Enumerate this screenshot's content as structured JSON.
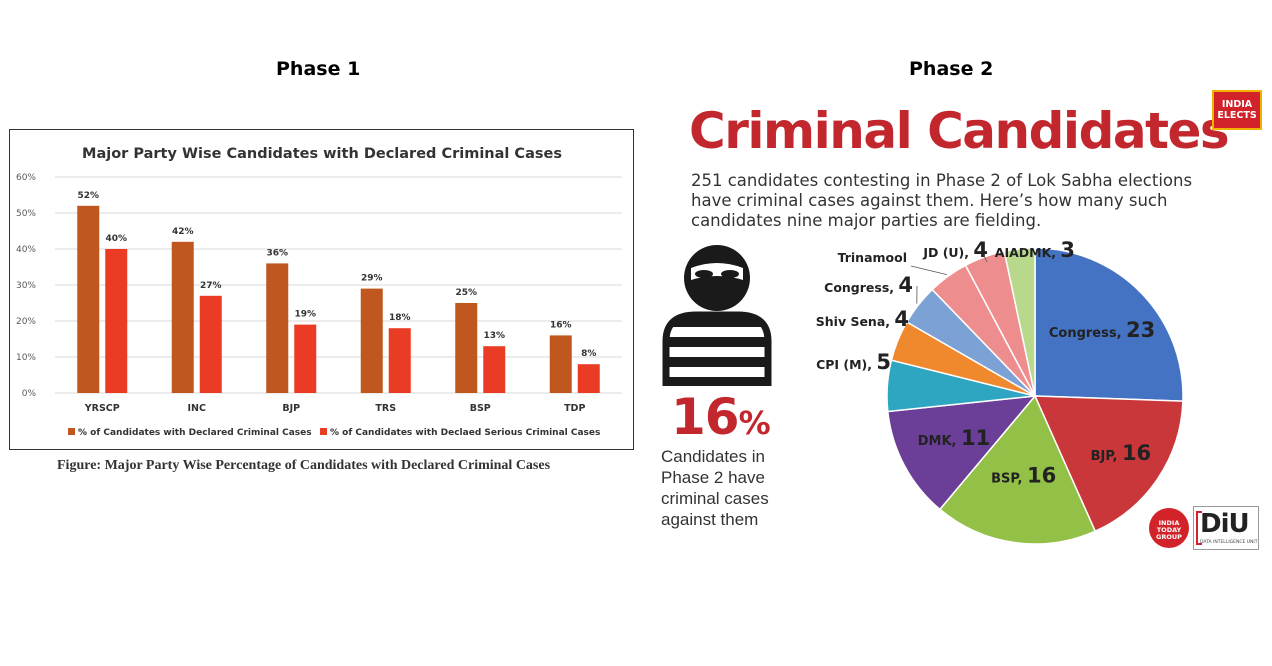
{
  "headers": {
    "phase1": "Phase 1",
    "phase2": "Phase 2"
  },
  "chart_data": [
    {
      "type": "bar",
      "title": "Major Party Wise Candidates with Declared Criminal Cases",
      "categories": [
        "YRSCP",
        "INC",
        "BJP",
        "TRS",
        "BSP",
        "TDP"
      ],
      "series": [
        {
          "name": "% of Candidates with Declared Criminal Cases",
          "values": [
            52,
            42,
            36,
            29,
            25,
            16
          ],
          "color": "#c0571f"
        },
        {
          "name": "% of Candidates with Declaed Serious Criminal Cases",
          "values": [
            40,
            27,
            19,
            18,
            13,
            8
          ],
          "color": "#ea3b25"
        }
      ],
      "value_suffix": "%",
      "ylim": [
        0,
        60
      ],
      "yticks": [
        "0%",
        "10%",
        "20%",
        "30%",
        "40%",
        "50%",
        "60%"
      ],
      "grid": true,
      "legend_position": "bottom",
      "caption": "Figure: Major Party Wise Percentage of Candidates with Declared Criminal Cases"
    },
    {
      "type": "pie",
      "slices": [
        {
          "label": "Congress,",
          "value": 23,
          "color": "#4473c4"
        },
        {
          "label": "BJP,",
          "value": 16,
          "color": "#c9373b"
        },
        {
          "label": "BSP,",
          "value": 16,
          "color": "#93c047"
        },
        {
          "label": "DMK,",
          "value": 11,
          "color": "#6b3f97"
        },
        {
          "label": "CPI (M),",
          "value": 5,
          "color": "#2ea6c2"
        },
        {
          "label": "Shiv Sena,",
          "value": 4,
          "color": "#f0882d"
        },
        {
          "label": "Congress,",
          "value": 4,
          "color": "#7ca1d4"
        },
        {
          "label": "Trinamool",
          "value": 4,
          "color": "#ee8d8d"
        },
        {
          "label": "JD (U),",
          "value": 4,
          "color": "#ee8d8d"
        },
        {
          "label": "AIADMK,",
          "value": 3,
          "color": "#b8d98b"
        }
      ]
    }
  ],
  "infographic": {
    "badge": "INDIA ELECTS",
    "title": "Criminal Candidates",
    "subtitle": "251 candidates contesting in Phase 2 of Lok Sabha elections have criminal cases against them. Here’s how many such candidates nine major parties are fielding.",
    "stat_value": "16",
    "stat_unit": "%",
    "stat_text": "Candidates in Phase 2 have criminal cases against them",
    "logo_left": "INDIA TODAY GROUP",
    "logo_right": "DiU",
    "logo_right_sub": "DATA INTELLIGENCE UNIT",
    "accent_color": "#c2272d"
  }
}
